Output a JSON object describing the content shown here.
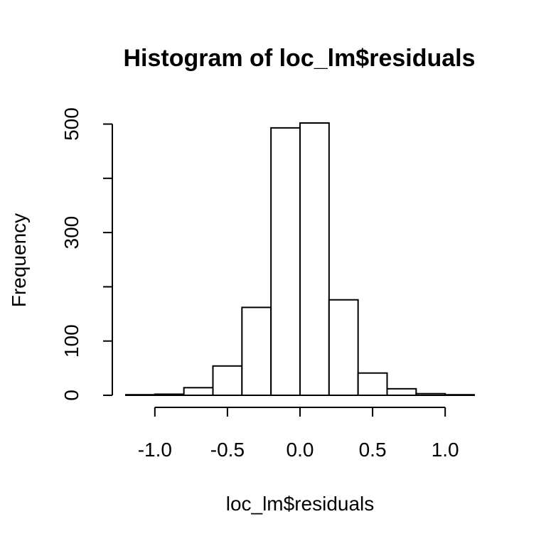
{
  "chart_data": {
    "type": "bar",
    "title": "Histogram of loc_lm$residuals",
    "xlabel": "loc_lm$residuals",
    "ylabel": "Frequency",
    "bin_edges": [
      -1.2,
      -1.0,
      -0.8,
      -0.6,
      -0.4,
      -0.2,
      0.0,
      0.2,
      0.4,
      0.6,
      0.8,
      1.0,
      1.2
    ],
    "values": [
      1,
      2,
      14,
      54,
      162,
      493,
      502,
      176,
      41,
      12,
      3,
      1
    ],
    "xlim": [
      -1.2,
      1.2
    ],
    "ylim": [
      0,
      502
    ],
    "x_ticks": [
      -1.0,
      -0.5,
      0.0,
      0.5,
      1.0
    ],
    "x_tick_labels": [
      "-1.0",
      "-0.5",
      "0.0",
      "0.5",
      "1.0"
    ],
    "y_ticks": [
      0,
      100,
      200,
      300,
      400,
      500
    ],
    "y_tick_labels": [
      "0",
      "100",
      "",
      "300",
      "",
      "500"
    ],
    "grid": false,
    "bar_fill": "#ffffff",
    "bar_stroke": "#000000"
  }
}
